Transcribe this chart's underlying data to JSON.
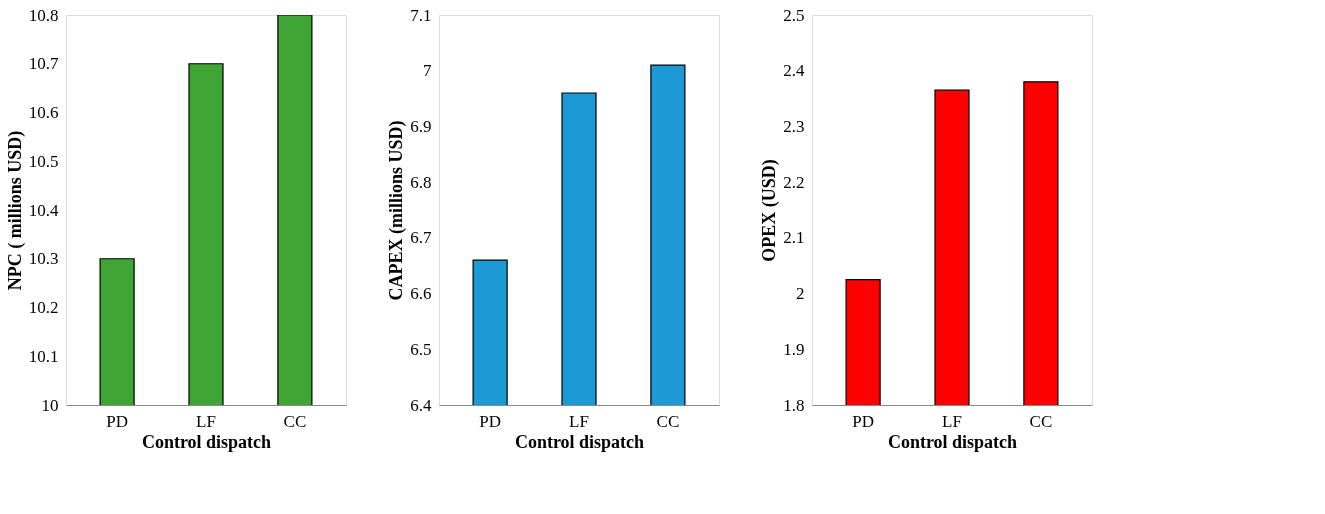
{
  "chart_data": [
    {
      "type": "bar",
      "xlabel": "Control dispatch",
      "ylabel": "NPC ( millions  USD)",
      "categories": [
        "PD",
        "LF",
        "CC"
      ],
      "values": [
        10.3,
        10.7,
        10.8
      ],
      "colors": [
        "#3fa535",
        "#3fa535",
        "#3fa535"
      ],
      "ylim": [
        10,
        10.8
      ],
      "yticks": [
        10,
        10.1,
        10.2,
        10.3,
        10.4,
        10.5,
        10.6,
        10.7,
        10.8
      ],
      "grid": false
    },
    {
      "type": "bar",
      "xlabel": "Control dispatch",
      "ylabel": "CAPEX (millions  USD)",
      "categories": [
        "PD",
        "LF",
        "CC"
      ],
      "values": [
        6.66,
        6.96,
        7.01
      ],
      "colors": [
        "#1b9ad6",
        "#1b9ad6",
        "#1b9ad6"
      ],
      "ylim": [
        6.4,
        7.1
      ],
      "yticks": [
        6.4,
        6.5,
        6.6,
        6.7,
        6.8,
        6.9,
        7,
        7.1
      ],
      "grid": false
    },
    {
      "type": "bar",
      "xlabel": "Control dispatch",
      "ylabel": "OPEX (USD)",
      "categories": [
        "PD",
        "LF",
        "CC"
      ],
      "values": [
        2.025,
        2.365,
        2.38
      ],
      "colors": [
        "#ff0000",
        "#ff0000",
        "#ff0000"
      ],
      "ylim": [
        1.8,
        2.5
      ],
      "yticks": [
        1.8,
        1.9,
        2,
        2.1,
        2.2,
        2.3,
        2.4,
        2.5
      ],
      "grid": false
    }
  ]
}
